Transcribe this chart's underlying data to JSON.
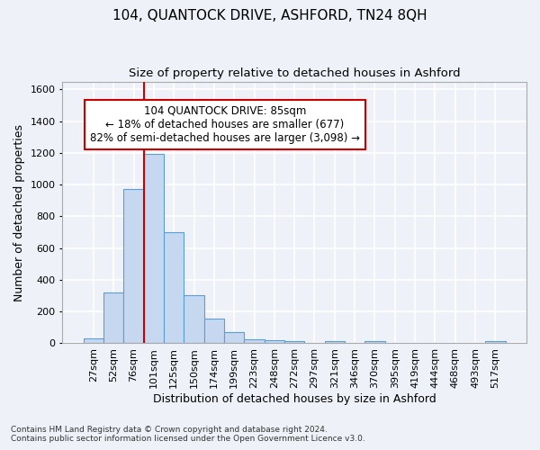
{
  "title": "104, QUANTOCK DRIVE, ASHFORD, TN24 8QH",
  "subtitle": "Size of property relative to detached houses in Ashford",
  "xlabel": "Distribution of detached houses by size in Ashford",
  "ylabel": "Number of detached properties",
  "footnote1": "Contains HM Land Registry data © Crown copyright and database right 2024.",
  "footnote2": "Contains public sector information licensed under the Open Government Licence v3.0.",
  "bar_labels": [
    "27sqm",
    "52sqm",
    "76sqm",
    "101sqm",
    "125sqm",
    "150sqm",
    "174sqm",
    "199sqm",
    "223sqm",
    "248sqm",
    "272sqm",
    "297sqm",
    "321sqm",
    "346sqm",
    "370sqm",
    "395sqm",
    "419sqm",
    "444sqm",
    "468sqm",
    "493sqm",
    "517sqm"
  ],
  "bar_values": [
    30,
    320,
    970,
    1195,
    700,
    305,
    155,
    70,
    28,
    18,
    15,
    0,
    12,
    0,
    12,
    0,
    0,
    0,
    0,
    0,
    12
  ],
  "bar_color": "#c5d8f0",
  "bar_edge_color": "#5a9fd4",
  "ylim": [
    0,
    1650
  ],
  "yticks": [
    0,
    200,
    400,
    600,
    800,
    1000,
    1200,
    1400,
    1600
  ],
  "property_bar_index": 2,
  "annotation_text": "104 QUANTOCK DRIVE: 85sqm\n← 18% of detached houses are smaller (677)\n82% of semi-detached houses are larger (3,098) →",
  "annotation_box_color": "#ffffff",
  "annotation_box_edge_color": "#cc0000",
  "vline_color": "#cc0000",
  "background_color": "#eef2f8",
  "grid_color": "#ffffff",
  "title_fontsize": 11,
  "subtitle_fontsize": 9.5,
  "axis_label_fontsize": 9,
  "tick_fontsize": 8,
  "footnote_fontsize": 6.5
}
